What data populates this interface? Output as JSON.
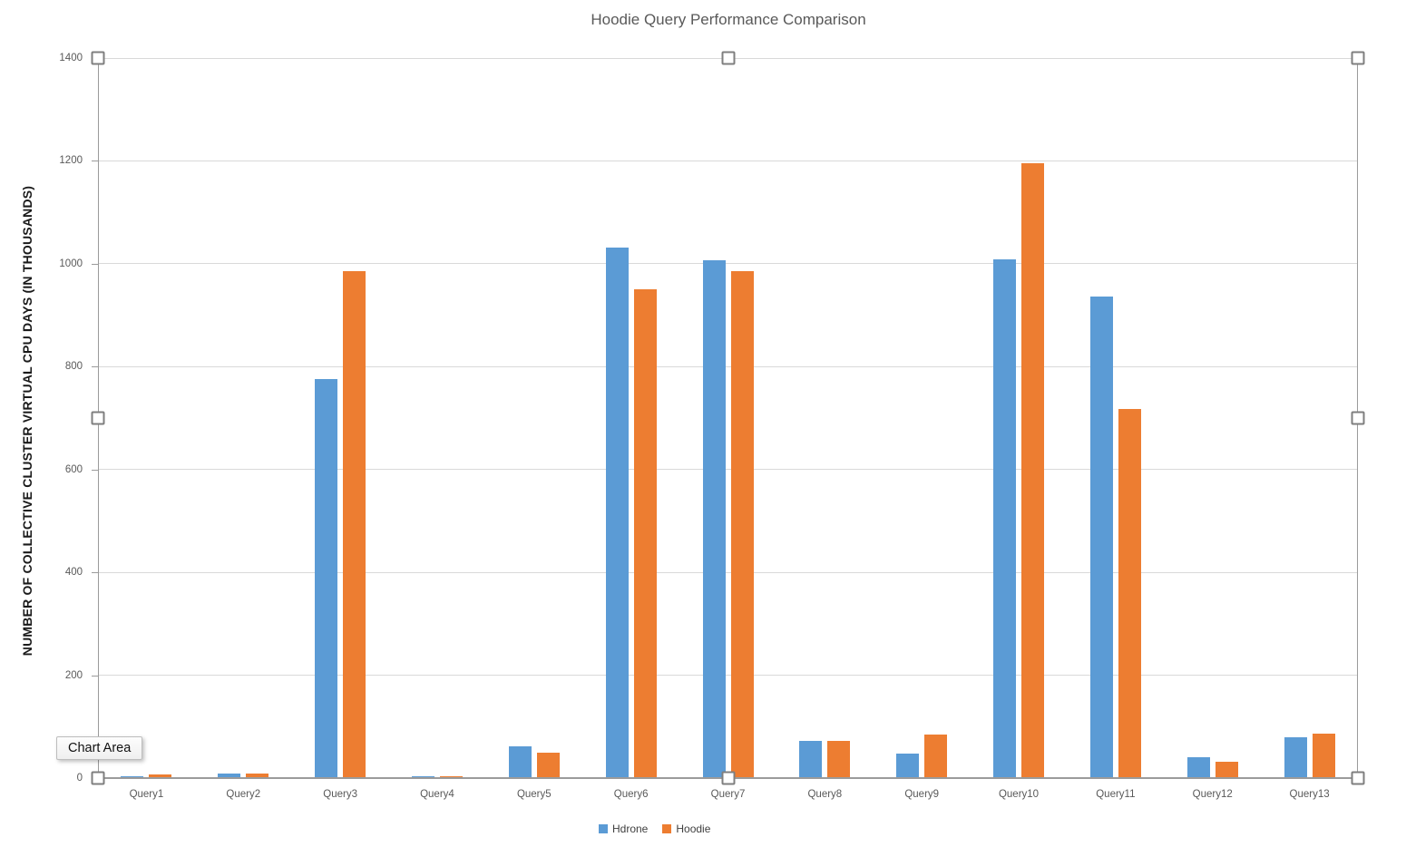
{
  "tooltip": {
    "label": "Chart Area"
  },
  "colors": {
    "series_blue": "#5B9BD5",
    "series_orange": "#ED7D31",
    "gridline": "#D9D9D9",
    "axis_text": "#595959",
    "title_text": "#595959"
  },
  "chart_data": {
    "type": "bar",
    "title": "Hoodie Query Performance Comparison",
    "xlabel": "",
    "ylabel": "NUMBER OF COLLECTIVE CLUSTER VIRTUAL CPU DAYS (IN THOUSANDS)",
    "categories": [
      "Query1",
      "Query2",
      "Query3",
      "Query4",
      "Query5",
      "Query6",
      "Query7",
      "Query8",
      "Query9",
      "Query10",
      "Query11",
      "Query12",
      "Query13"
    ],
    "series": [
      {
        "name": "Hdrone",
        "color": "#5B9BD5",
        "values": [
          4,
          9,
          776,
          4,
          62,
          1032,
          1007,
          72,
          48,
          1008,
          936,
          41,
          79
        ]
      },
      {
        "name": "Hoodie",
        "color": "#ED7D31",
        "values": [
          7,
          8,
          986,
          4,
          49,
          951,
          986,
          72,
          85,
          1195,
          718,
          32,
          86
        ]
      }
    ],
    "ylim": [
      0,
      1400
    ],
    "yticks": [
      0,
      200,
      400,
      600,
      800,
      1000,
      1200,
      1400
    ],
    "grid": true,
    "legend_position": "bottom"
  }
}
